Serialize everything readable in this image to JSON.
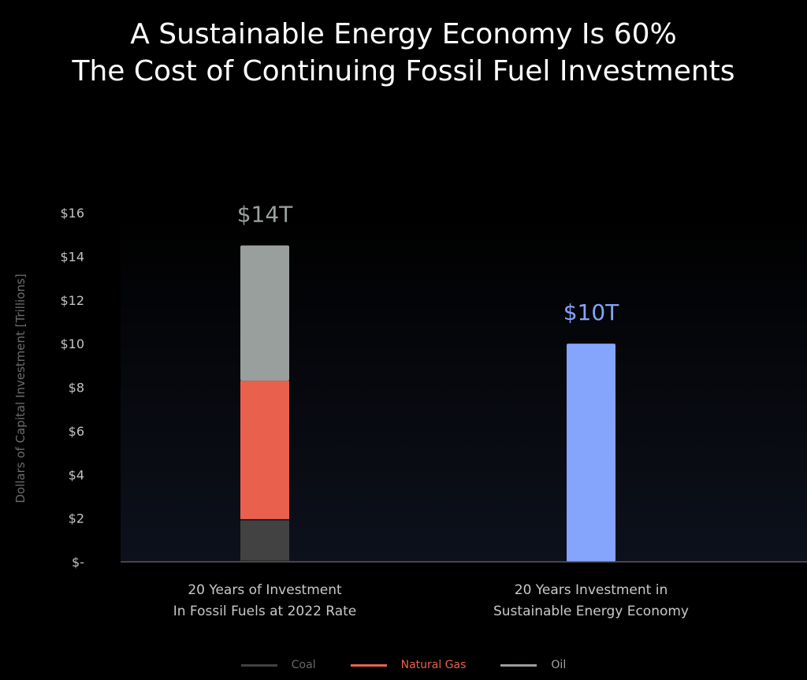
{
  "title_lines": [
    "A Sustainable Energy Economy Is 60%",
    "The Cost of Continuing Fossil Fuel Investments"
  ],
  "chart_data": {
    "type": "bar",
    "stacked": true,
    "ylabel": "Dollars of Capital Investment [Trillions]",
    "ylim": [
      0,
      16
    ],
    "yticks": [
      {
        "value": 0,
        "label": "$-"
      },
      {
        "value": 2,
        "label": "$2"
      },
      {
        "value": 4,
        "label": "$4"
      },
      {
        "value": 6,
        "label": "$6"
      },
      {
        "value": 8,
        "label": "$8"
      },
      {
        "value": 10,
        "label": "$10"
      },
      {
        "value": 12,
        "label": "$12"
      },
      {
        "value": 14,
        "label": "$14"
      },
      {
        "value": 16,
        "label": "$16"
      }
    ],
    "categories": [
      [
        "20 Years of Investment",
        "In Fossil Fuels at 2022 Rate"
      ],
      [
        "20 Years Investment in",
        "Sustainable Energy Economy"
      ]
    ],
    "bars": [
      {
        "total_label": "$14T",
        "label_color": "#9aa19f",
        "segments": [
          {
            "name": "Coal",
            "value": 1.9,
            "color": "#424242"
          },
          {
            "name": "Natural Gas",
            "value": 6.4,
            "color": "#e9614d"
          },
          {
            "name": "Oil",
            "value": 6.2,
            "color": "#999f9c"
          }
        ]
      },
      {
        "total_label": "$10T",
        "label_color": "#85a4fb",
        "segments": [
          {
            "name": "Sustainable Energy",
            "value": 10,
            "color": "#85a4fb"
          }
        ]
      }
    ],
    "legend": [
      {
        "name": "Coal",
        "color": "#424242",
        "text_color": "#6a6a6a"
      },
      {
        "name": "Natural Gas",
        "color": "#e9614d",
        "text_color": "#e9614d"
      },
      {
        "name": "Oil",
        "color": "#999f9c",
        "text_color": "#a0a6a3"
      }
    ],
    "legend_position": "bottom",
    "grid": false
  }
}
